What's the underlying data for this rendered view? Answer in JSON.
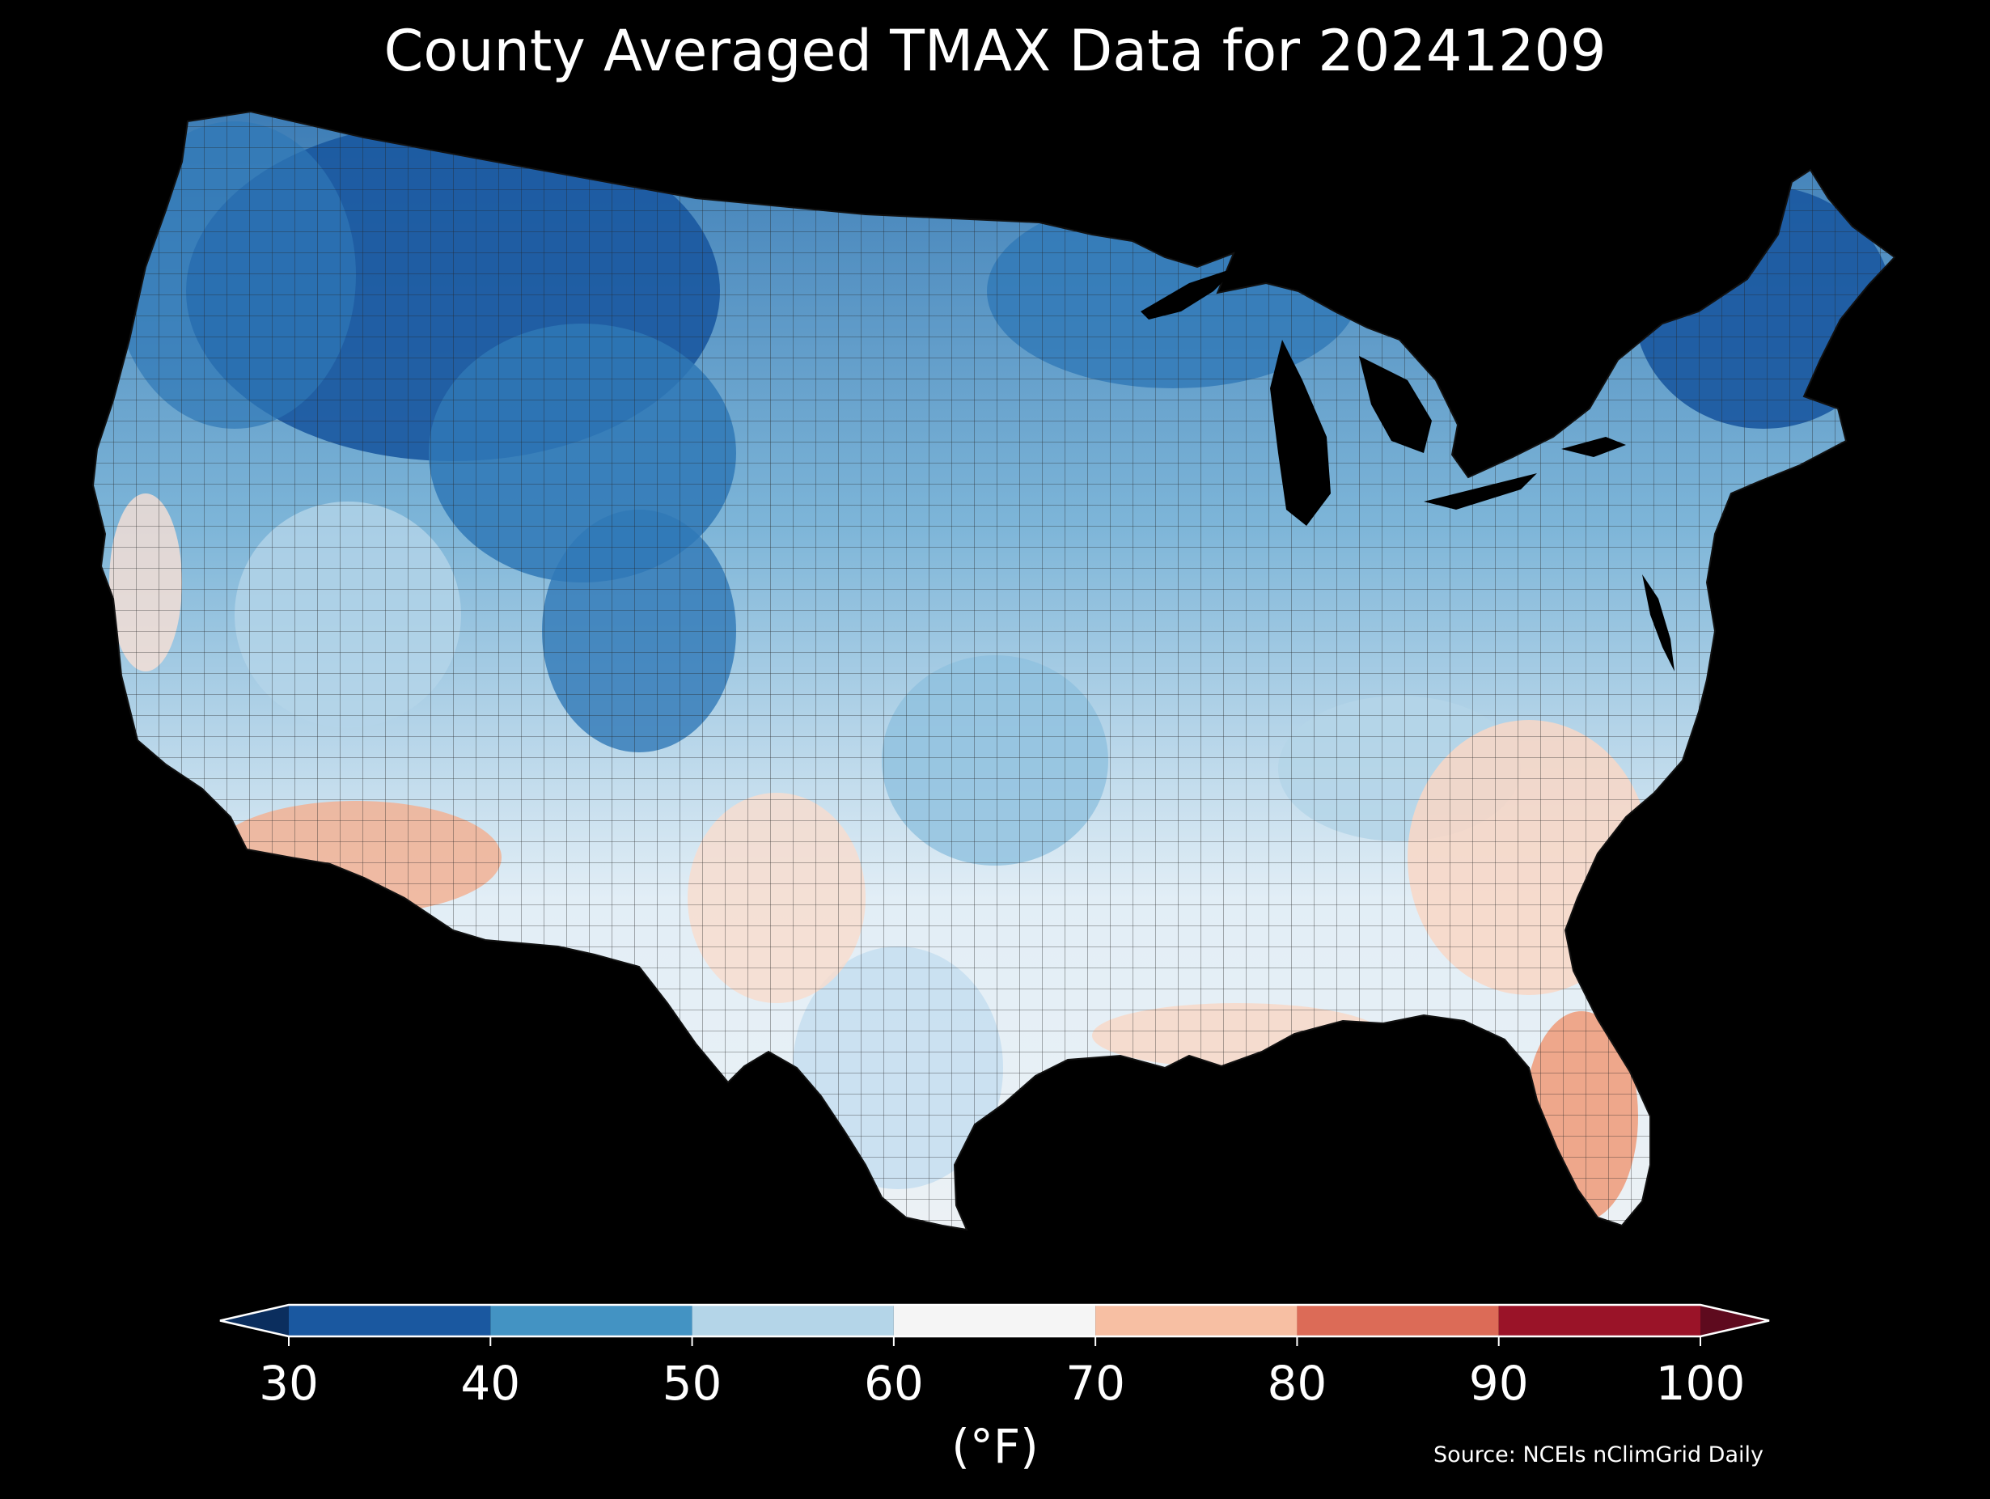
{
  "title": "County Averaged TMAX Data for 20241209",
  "colorbar": {
    "unit_label": "(°F)",
    "ticks": [
      "30",
      "40",
      "50",
      "60",
      "70",
      "80",
      "90",
      "100"
    ],
    "bins": [
      {
        "from": 30,
        "to": 40,
        "color": "#1a58a0"
      },
      {
        "from": 40,
        "to": 50,
        "color": "#4393c3"
      },
      {
        "from": 50,
        "to": 60,
        "color": "#b4d5e8"
      },
      {
        "from": 60,
        "to": 70,
        "color": "#f5f5f5"
      },
      {
        "from": 70,
        "to": 80,
        "color": "#f7bfa3"
      },
      {
        "from": 80,
        "to": 90,
        "color": "#dc6b57"
      },
      {
        "from": 90,
        "to": 100,
        "color": "#9a1328"
      }
    ],
    "under_color": "#0b2e5e",
    "over_color": "#5e0a1e"
  },
  "source": "Source: NCEIs nClimGrid Daily",
  "colors": {
    "background": "#000000",
    "text": "#ffffff"
  },
  "map": {
    "region": "Contiguous United States",
    "units": "county",
    "variable": "TMAX"
  }
}
